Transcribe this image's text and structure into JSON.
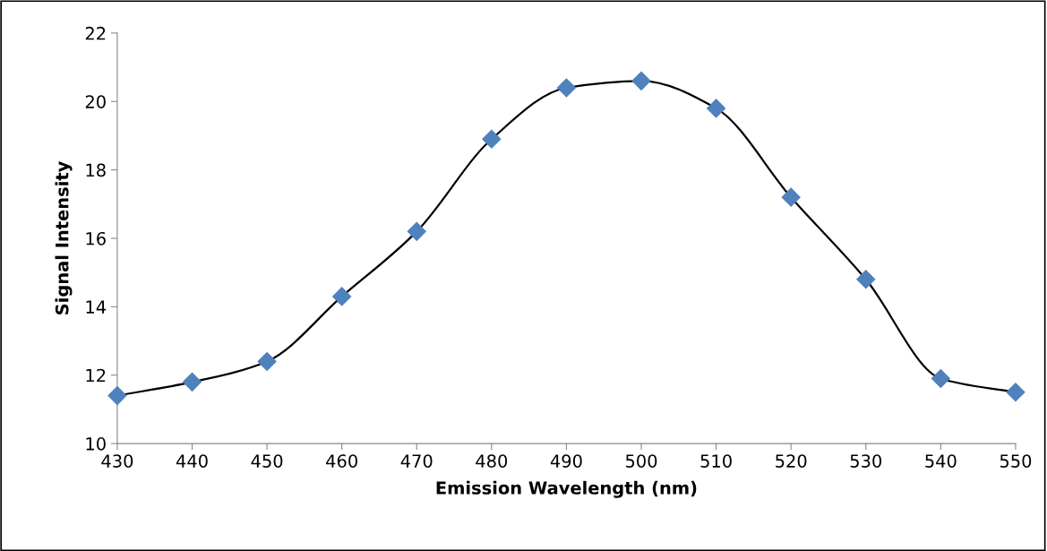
{
  "chart_data": {
    "type": "line",
    "xlabel": "Emission Wavelength (nm)",
    "ylabel": "Signal Intensity",
    "x": [
      430,
      440,
      450,
      460,
      470,
      480,
      490,
      500,
      510,
      520,
      530,
      540,
      550
    ],
    "series": [
      {
        "color": "#4f81bd",
        "values": [
          11.4,
          11.8,
          12.4,
          14.3,
          16.2,
          18.9,
          20.4,
          20.6,
          19.8,
          17.2,
          14.8,
          11.9,
          11.5
        ]
      }
    ],
    "xlim": [
      430,
      550
    ],
    "xticks": [
      430,
      440,
      450,
      460,
      470,
      480,
      490,
      500,
      510,
      520,
      530,
      540,
      550
    ],
    "ylim": [
      10,
      22
    ],
    "yticks": [
      10,
      12,
      14,
      16,
      18,
      20,
      22
    ],
    "grid": false,
    "marker": "diamond",
    "line_style": "solid"
  }
}
